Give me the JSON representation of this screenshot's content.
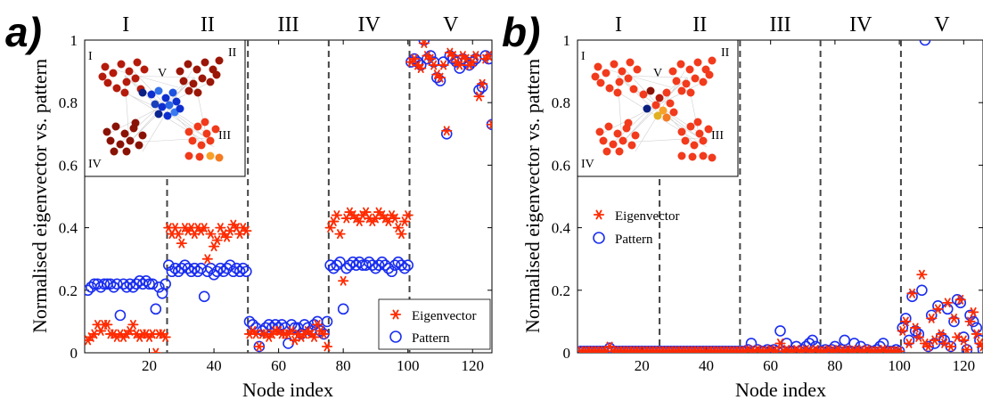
{
  "chart_data": [
    {
      "type": "scatter",
      "panel_letter": "a)",
      "xlabel": "Node index",
      "ylabel": "Normalised eigenvector vs. pattern",
      "xlim": [
        0,
        126
      ],
      "ylim": [
        0,
        1
      ],
      "x_ticks": [
        20,
        40,
        60,
        80,
        100,
        120
      ],
      "y_ticks": [
        0,
        0.2,
        0.4,
        0.6,
        0.8,
        1
      ],
      "block_dividers": [
        25.5,
        50.5,
        75.5,
        100.5
      ],
      "block_labels": [
        "I",
        "II",
        "III",
        "IV",
        "V"
      ],
      "legend": {
        "position": "bottom-right",
        "entries": [
          "Eigenvector",
          "Pattern"
        ]
      },
      "inset_labels": [
        "I",
        "II",
        "III",
        "IV",
        "V"
      ],
      "series": [
        {
          "name": "Eigenvector",
          "marker": "asterisk",
          "color": "#ff2a00",
          "values": [
            0.04,
            0.05,
            0.06,
            0.09,
            0.07,
            0.09,
            0.09,
            0.06,
            0.06,
            0.05,
            0.06,
            0.05,
            0.06,
            0.07,
            0.09,
            0.06,
            0.05,
            0.06,
            0.06,
            0.05,
            0.06,
            0.0,
            0.06,
            0.06,
            0.05,
            0.4,
            0.38,
            0.4,
            0.38,
            0.35,
            0.4,
            0.39,
            0.4,
            0.38,
            0.4,
            0.39,
            0.4,
            0.3,
            0.38,
            0.34,
            0.36,
            0.4,
            0.38,
            0.37,
            0.39,
            0.41,
            0.4,
            0.38,
            0.4,
            0.39,
            0.06,
            0.07,
            0.06,
            0.02,
            0.06,
            0.06,
            0.05,
            0.06,
            0.07,
            0.07,
            0.06,
            0.06,
            0.06,
            0.07,
            0.04,
            0.06,
            0.05,
            0.06,
            0.07,
            0.06,
            0.05,
            0.09,
            0.07,
            0.06,
            0.02,
            0.4,
            0.42,
            0.44,
            0.38,
            0.23,
            0.43,
            0.45,
            0.44,
            0.43,
            0.42,
            0.44,
            0.45,
            0.43,
            0.42,
            0.43,
            0.45,
            0.44,
            0.43,
            0.42,
            0.44,
            0.43,
            0.4,
            0.38,
            0.42,
            0.44,
            0.93,
            0.94,
            0.92,
            0.91,
            0.99,
            0.95,
            0.94,
            0.92,
            0.89,
            0.88,
            0.92,
            0.71,
            0.96,
            0.95,
            0.93,
            0.92,
            0.95,
            0.94,
            0.92,
            0.93,
            0.95,
            0.82,
            0.86,
            0.94,
            0.95,
            0.73
          ]
        },
        {
          "name": "Pattern",
          "marker": "circle",
          "color": "#1a2ef0",
          "values": [
            0.2,
            0.21,
            0.22,
            0.22,
            0.21,
            0.22,
            0.22,
            0.22,
            0.21,
            0.22,
            0.12,
            0.22,
            0.21,
            0.22,
            0.21,
            0.22,
            0.23,
            0.22,
            0.23,
            0.22,
            0.22,
            0.14,
            0.21,
            0.19,
            0.22,
            0.28,
            0.26,
            0.27,
            0.26,
            0.27,
            0.28,
            0.27,
            0.26,
            0.27,
            0.26,
            0.27,
            0.18,
            0.26,
            0.27,
            0.25,
            0.26,
            0.27,
            0.26,
            0.27,
            0.28,
            0.26,
            0.27,
            0.26,
            0.27,
            0.26,
            0.1,
            0.09,
            0.08,
            0.02,
            0.07,
            0.08,
            0.09,
            0.08,
            0.09,
            0.08,
            0.09,
            0.08,
            0.03,
            0.09,
            0.08,
            0.08,
            0.06,
            0.09,
            0.08,
            0.07,
            0.09,
            0.1,
            0.07,
            0.06,
            0.1,
            0.28,
            0.27,
            0.28,
            0.29,
            0.14,
            0.27,
            0.28,
            0.29,
            0.28,
            0.29,
            0.28,
            0.28,
            0.29,
            0.28,
            0.27,
            0.28,
            0.29,
            0.28,
            0.27,
            0.26,
            0.28,
            0.29,
            0.28,
            0.27,
            0.28,
            0.93,
            0.94,
            0.93,
            0.92,
            1.0,
            0.94,
            0.95,
            0.93,
            0.88,
            0.87,
            0.93,
            0.7,
            0.95,
            0.94,
            0.93,
            0.91,
            0.94,
            0.93,
            0.92,
            0.93,
            0.94,
            0.84,
            0.85,
            0.95,
            0.94,
            0.73
          ]
        }
      ]
    },
    {
      "type": "scatter",
      "panel_letter": "b)",
      "xlabel": "Node index",
      "ylabel": "Normalised eigenvector vs. pattern",
      "xlim": [
        0,
        126
      ],
      "ylim": [
        0,
        1
      ],
      "x_ticks": [
        20,
        40,
        60,
        80,
        100,
        120
      ],
      "y_ticks": [
        0,
        0.2,
        0.4,
        0.6,
        0.8,
        1
      ],
      "block_dividers": [
        25.5,
        50.5,
        75.5,
        100.5
      ],
      "block_labels": [
        "I",
        "II",
        "III",
        "IV",
        "V"
      ],
      "legend": {
        "position": "middle-left",
        "entries": [
          "Eigenvector",
          "Pattern"
        ]
      },
      "inset_labels": [
        "I",
        "II",
        "III",
        "IV",
        "V"
      ],
      "series": [
        {
          "name": "Eigenvector",
          "marker": "asterisk",
          "color": "#ff2a00",
          "values": [
            0.005,
            0.005,
            0.005,
            0.005,
            0.005,
            0.005,
            0.005,
            0.005,
            0.005,
            0.02,
            0.005,
            0.005,
            0.005,
            0.005,
            0.005,
            0.005,
            0.005,
            0.005,
            0.005,
            0.005,
            0.005,
            0.005,
            0.005,
            0.005,
            0.005,
            0.005,
            0.005,
            0.005,
            0.005,
            0.005,
            0.005,
            0.005,
            0.005,
            0.005,
            0.005,
            0.005,
            0.005,
            0.005,
            0.005,
            0.005,
            0.005,
            0.005,
            0.005,
            0.005,
            0.005,
            0.005,
            0.005,
            0.005,
            0.005,
            0.005,
            0.005,
            0.005,
            0.01,
            0.005,
            0.005,
            0.01,
            0.005,
            0.005,
            0.005,
            0.01,
            0.005,
            0.005,
            0.03,
            0.005,
            0.01,
            0.005,
            0.005,
            0.01,
            0.005,
            0.005,
            0.01,
            0.005,
            0.005,
            0.01,
            0.005,
            0.005,
            0.005,
            0.01,
            0.005,
            0.005,
            0.01,
            0.005,
            0.005,
            0.01,
            0.005,
            0.005,
            0.01,
            0.005,
            0.005,
            0.01,
            0.005,
            0.005,
            0.005,
            0.005,
            0.01,
            0.005,
            0.005,
            0.005,
            0.005,
            0.005,
            0.07,
            0.1,
            0.03,
            0.19,
            0.08,
            0.05,
            0.25,
            0.03,
            0.02,
            0.11,
            0.04,
            0.14,
            0.06,
            0.03,
            0.16,
            0.02,
            0.11,
            0.05,
            0.17,
            0.04,
            0.01,
            0.1,
            0.13,
            0.06,
            0.03,
            0.02
          ]
        },
        {
          "name": "Pattern",
          "marker": "circle",
          "color": "#1a2ef0",
          "values": [
            0.005,
            0.005,
            0.005,
            0.005,
            0.005,
            0.005,
            0.005,
            0.005,
            0.005,
            0.015,
            0.005,
            0.005,
            0.005,
            0.005,
            0.005,
            0.005,
            0.005,
            0.005,
            0.005,
            0.005,
            0.005,
            0.005,
            0.005,
            0.005,
            0.005,
            0.005,
            0.005,
            0.005,
            0.005,
            0.005,
            0.005,
            0.005,
            0.005,
            0.005,
            0.005,
            0.005,
            0.005,
            0.005,
            0.005,
            0.005,
            0.005,
            0.005,
            0.005,
            0.005,
            0.005,
            0.005,
            0.005,
            0.005,
            0.005,
            0.005,
            0.005,
            0.005,
            0.01,
            0.03,
            0.005,
            0.01,
            0.005,
            0.005,
            0.01,
            0.005,
            0.01,
            0.005,
            0.07,
            0.005,
            0.03,
            0.005,
            0.005,
            0.02,
            0.005,
            0.01,
            0.02,
            0.03,
            0.04,
            0.02,
            0.005,
            0.005,
            0.01,
            0.005,
            0.01,
            0.02,
            0.005,
            0.01,
            0.04,
            0.005,
            0.005,
            0.03,
            0.005,
            0.02,
            0.005,
            0.01,
            0.005,
            0.005,
            0.01,
            0.02,
            0.03,
            0.005,
            0.005,
            0.005,
            0.01,
            0.005,
            0.08,
            0.11,
            0.04,
            0.18,
            0.07,
            0.06,
            0.2,
            1.0,
            0.02,
            0.12,
            0.03,
            0.15,
            0.05,
            0.04,
            0.14,
            0.02,
            0.1,
            0.17,
            0.16,
            0.05,
            0.01,
            0.12,
            0.1,
            0.08,
            0.04,
            0.01
          ]
        }
      ]
    }
  ]
}
